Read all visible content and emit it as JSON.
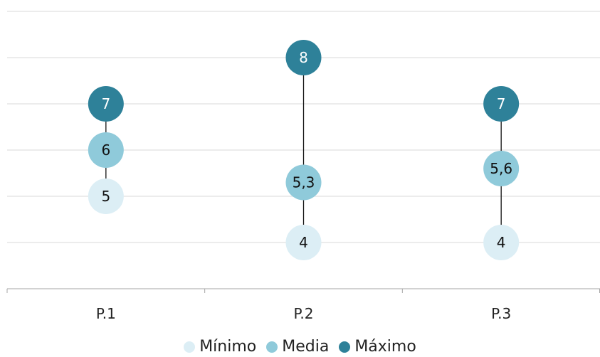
{
  "chart_data": {
    "type": "scatter",
    "title": "",
    "xlabel": "",
    "ylabel": "",
    "categories": [
      "P.1",
      "P.2",
      "P.3"
    ],
    "series": [
      {
        "name": "Mínimo",
        "values": [
          5,
          4,
          4
        ],
        "labels": [
          "5",
          "4",
          "4"
        ],
        "color": "#DCEEF5"
      },
      {
        "name": "Media",
        "values": [
          6,
          5.3,
          5.6
        ],
        "labels": [
          "6",
          "5,3",
          "5,6"
        ],
        "color": "#8FCADA"
      },
      {
        "name": "Máximo",
        "values": [
          7,
          8,
          7
        ],
        "labels": [
          "7",
          "8",
          "7"
        ],
        "color": "#2E8199"
      }
    ],
    "ylim": [
      3,
      9
    ],
    "grid": true,
    "legend_position": "bottom"
  }
}
